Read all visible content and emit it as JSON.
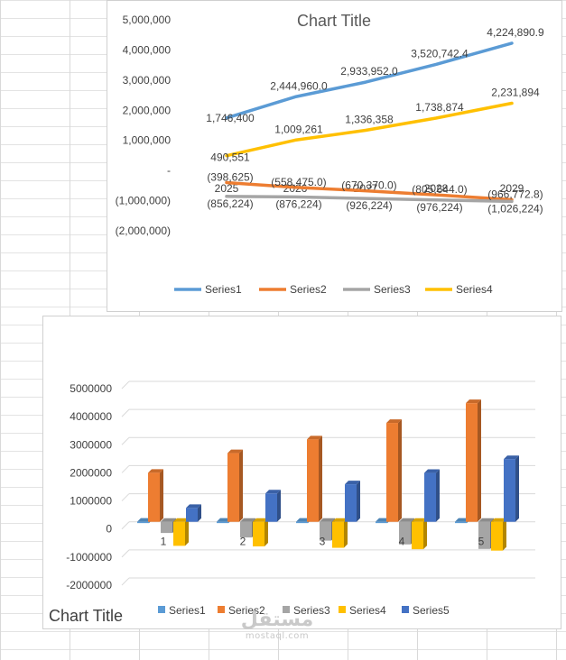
{
  "chart_data": [
    {
      "type": "line",
      "title": "Chart Title",
      "categories": [
        "2025",
        "2026",
        "2027",
        "2028",
        "2029"
      ],
      "ylim": [
        -2000000,
        5000000
      ],
      "y_ticks": [
        "5,000,000",
        "4,000,000",
        "3,000,000",
        "2,000,000",
        "1,000,000",
        "-",
        "(1,000,000)",
        "(2,000,000)"
      ],
      "legend": "bottom",
      "grid": false,
      "series": [
        {
          "name": "Series1",
          "color": "#5b9bd5",
          "values": [
            1746400,
            2444960,
            2933952,
            3520742.4,
            4224890.9
          ],
          "labels": [
            "1,746,400",
            "2,444,960.0",
            "2,933,952.0",
            "3,520,742.4",
            "4,224,890.9"
          ]
        },
        {
          "name": "Series2",
          "color": "#ed7d31",
          "values": [
            -398625,
            -558475,
            -670370,
            -805644,
            -966772.8
          ],
          "labels": [
            "(398,625)",
            "(558,475.0)",
            "(670,370.0)",
            "(805,644.0)",
            "(966,772.8)"
          ]
        },
        {
          "name": "Series3",
          "color": "#a5a5a5",
          "values": [
            -856224,
            -876224,
            -926224,
            -976224,
            -1026224
          ],
          "labels": [
            "(856,224)",
            "(876,224)",
            "(926,224)",
            "(976,224)",
            "(1,026,224)"
          ]
        },
        {
          "name": "Series4",
          "color": "#ffc000",
          "values": [
            490551,
            1009261,
            1336358,
            1738874,
            2231894
          ],
          "labels": [
            "490,551",
            "1,009,261",
            "1,336,358",
            "1,738,874",
            "2,231,894"
          ]
        }
      ]
    },
    {
      "type": "bar",
      "title": "Chart Title",
      "categories": [
        "1",
        "2",
        "3",
        "4",
        "5"
      ],
      "ylim": [
        -2000000,
        5000000
      ],
      "y_ticks": [
        "5000000",
        "4000000",
        "3000000",
        "2000000",
        "1000000",
        "0",
        "-1000000",
        "-2000000"
      ],
      "legend": "bottom",
      "grid": true,
      "series": [
        {
          "name": "Series1",
          "color": "#5b9bd5",
          "values": [
            2025,
            2026,
            2027,
            2028,
            2029
          ]
        },
        {
          "name": "Series2",
          "color": "#ed7d31",
          "values": [
            1746400,
            2444960,
            2933952,
            3520742.4,
            4224890.9
          ]
        },
        {
          "name": "Series3",
          "color": "#a5a5a5",
          "values": [
            -398625,
            -558475,
            -670370,
            -805644,
            -966772.8
          ]
        },
        {
          "name": "Series4",
          "color": "#ffc000",
          "values": [
            -856224,
            -876224,
            -926224,
            -976224,
            -1026224
          ]
        },
        {
          "name": "Series5",
          "color": "#4472c4",
          "values": [
            490551,
            1009261,
            1336358,
            1738874,
            2231894
          ]
        }
      ]
    }
  ],
  "watermark": {
    "arabic": "مستقل",
    "latin": "mostaql.com"
  }
}
